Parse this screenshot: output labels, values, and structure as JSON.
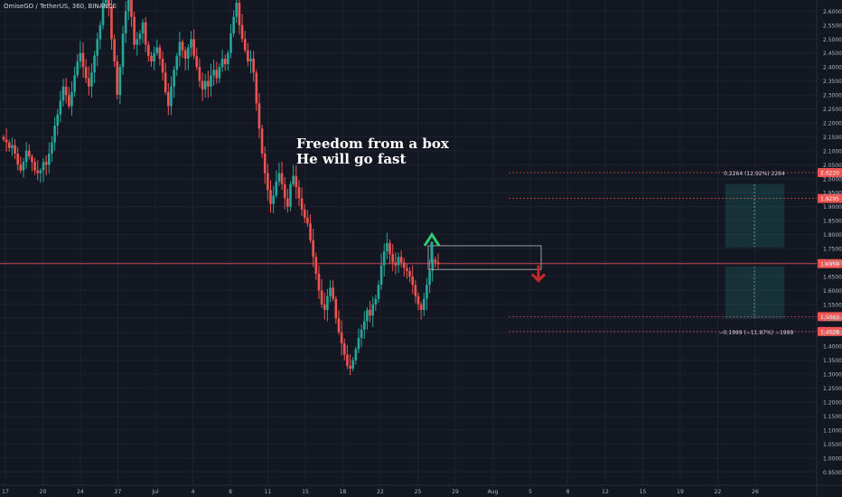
{
  "symbol_label": "OmiseGO / TetherUS, 360, BINANCE",
  "annotation": {
    "line1": "Freedom from a box",
    "line2": "He will go fast"
  },
  "colors": {
    "background": "#131722",
    "grid": "#1e2230",
    "up": "#26a69a",
    "down": "#ef5350",
    "axis_text": "#b2b5be",
    "annotation": "#ffffff"
  },
  "chart_data": {
    "type": "candlestick",
    "ylim": [
      0.925,
      2.64
    ],
    "y_ticks": [
      "2.6000",
      "2.5500",
      "2.5000",
      "2.4500",
      "2.4000",
      "2.3500",
      "2.3000",
      "2.2500",
      "2.2000",
      "2.1500",
      "2.1000",
      "2.0500",
      "2.0000",
      "1.9500",
      "1.9000",
      "1.8500",
      "1.8000",
      "1.7500",
      "1.7000",
      "1.6500",
      "1.6000",
      "1.5500",
      "1.5000",
      "1.4500",
      "1.4000",
      "1.3500",
      "1.3000",
      "1.2500",
      "1.2000",
      "1.1500",
      "1.1000",
      "1.0500",
      "1.0000",
      "0.9500"
    ],
    "x_ticks": [
      "17",
      "20",
      "24",
      "27",
      "Jul",
      "4",
      "8",
      "11",
      "15",
      "18",
      "22",
      "25",
      "29",
      "Aug",
      "5",
      "8",
      "12",
      "15",
      "19",
      "22",
      "26"
    ],
    "price_tags": [
      {
        "label": "2.0220",
        "value": 2.022
      },
      {
        "label": "1.9295",
        "value": 1.9295
      },
      {
        "label": "1.6959",
        "value": 1.6959
      },
      {
        "label": "1.5063",
        "value": 1.5063
      },
      {
        "label": "1.4528",
        "value": 1.4528
      }
    ],
    "closes": [
      2.14,
      2.13,
      2.11,
      2.12,
      2.09,
      2.05,
      2.03,
      2.06,
      2.1,
      2.08,
      2.06,
      2.03,
      2.02,
      2.03,
      2.06,
      2.05,
      2.09,
      2.13,
      2.19,
      2.23,
      2.28,
      2.33,
      2.3,
      2.26,
      2.31,
      2.37,
      2.42,
      2.45,
      2.4,
      2.36,
      2.33,
      2.38,
      2.44,
      2.5,
      2.55,
      2.63,
      2.7,
      2.62,
      2.5,
      2.42,
      2.3,
      2.4,
      2.52,
      2.6,
      2.66,
      2.58,
      2.48,
      2.5,
      2.52,
      2.56,
      2.48,
      2.44,
      2.42,
      2.45,
      2.47,
      2.43,
      2.38,
      2.31,
      2.26,
      2.33,
      2.39,
      2.44,
      2.49,
      2.46,
      2.43,
      2.47,
      2.5,
      2.44,
      2.4,
      2.35,
      2.32,
      2.35,
      2.33,
      2.37,
      2.39,
      2.36,
      2.4,
      2.43,
      2.41,
      2.45,
      2.52,
      2.58,
      2.63,
      2.55,
      2.5,
      2.46,
      2.42,
      2.43,
      2.38,
      2.27,
      2.18,
      2.09,
      2.02,
      1.96,
      1.91,
      1.94,
      1.99,
      2.02,
      1.98,
      1.93,
      1.9,
      1.98,
      2.01,
      1.97,
      1.93,
      1.89,
      1.86,
      1.84,
      1.78,
      1.72,
      1.66,
      1.6,
      1.55,
      1.53,
      1.58,
      1.61,
      1.57,
      1.5,
      1.45,
      1.41,
      1.37,
      1.33,
      1.32,
      1.35,
      1.39,
      1.43,
      1.46,
      1.49,
      1.53,
      1.51,
      1.55,
      1.57,
      1.62,
      1.69,
      1.74,
      1.77,
      1.73,
      1.7,
      1.69,
      1.72,
      1.7,
      1.68,
      1.67,
      1.65,
      1.62,
      1.58,
      1.55,
      1.53,
      1.57,
      1.62,
      1.67,
      1.71,
      1.7,
      1.695
    ]
  }
}
